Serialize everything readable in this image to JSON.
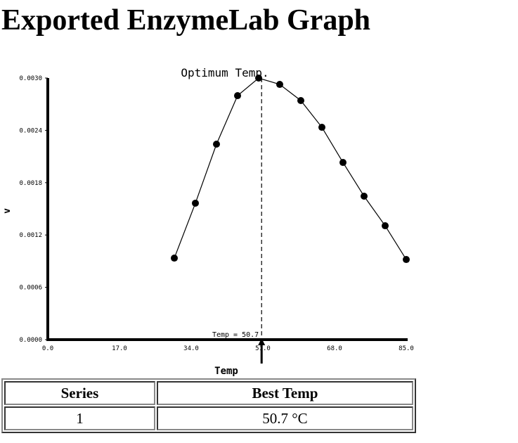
{
  "page": {
    "title": "Exported EnzymeLab Graph"
  },
  "chart_data": {
    "type": "line",
    "title": "Optimum Temp.",
    "xlabel": "Temp",
    "ylabel": "v",
    "xlim": [
      0,
      85
    ],
    "ylim": [
      0,
      0.003
    ],
    "x_ticks": [
      "0.0",
      "17.0",
      "34.0",
      "51.0",
      "68.0",
      "85.0"
    ],
    "y_ticks": [
      "0.0000",
      "0.0006",
      "0.0012",
      "0.0018",
      "0.0024",
      "0.0030"
    ],
    "grid": false,
    "series": [
      {
        "x": [
          30,
          35,
          40,
          45,
          50,
          55,
          60,
          65,
          70,
          75,
          80,
          85
        ],
        "y": [
          0.000935,
          0.001565,
          0.002242,
          0.002798,
          0.003,
          0.002927,
          0.002742,
          0.002435,
          0.002032,
          0.001645,
          0.001306,
          0.000919
        ]
      }
    ],
    "marker_line": {
      "x": 50.7,
      "label": "Temp = 50.7"
    }
  },
  "table": {
    "headers": [
      "Series",
      "Best Temp"
    ],
    "rows": [
      [
        "1",
        "50.7 °C"
      ]
    ]
  }
}
